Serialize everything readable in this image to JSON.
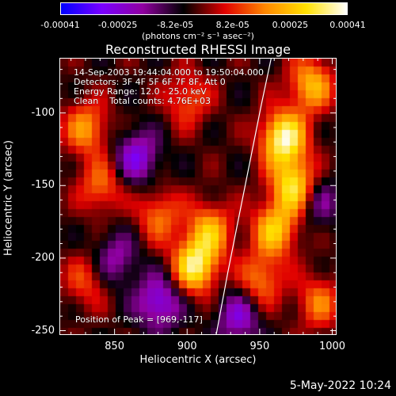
{
  "colorbar": {
    "ticks": [
      "-0.00041",
      "-0.00025",
      "-8.2e-05",
      "8.2e-05",
      "0.00025",
      "0.00041"
    ],
    "unit": "(photons cm⁻² s⁻¹ asec⁻²)",
    "colors": [
      "#0000ff",
      "#7a00ff",
      "#9000a0",
      "#000000",
      "#e00000",
      "#ff8800",
      "#ffe000",
      "#ffffff"
    ]
  },
  "chart_data": {
    "type": "heatmap",
    "title": "Reconstructed RHESSI Image",
    "xlabel": "Heliocentric X (arcsec)",
    "ylabel": "Heliocentric Y (arcsec)",
    "xlim": [
      812,
      1003
    ],
    "ylim": [
      -253,
      -62
    ],
    "x_ticks": [
      "850",
      "900",
      "950",
      "1000"
    ],
    "y_ticks": [
      "-100",
      "-150",
      "-200",
      "-250"
    ],
    "x_tick_values": [
      850,
      900,
      950,
      1000
    ],
    "y_tick_values": [
      -100,
      -150,
      -200,
      -250
    ],
    "limb": [
      [
        920,
        -253
      ],
      [
        928,
        -210
      ],
      [
        936,
        -170
      ],
      [
        944,
        -130
      ],
      [
        951,
        -95
      ],
      [
        958,
        -62
      ]
    ],
    "blobs": [
      {
        "x": 966,
        "y": -117,
        "value": 1.0
      },
      {
        "x": 973,
        "y": -150,
        "value": 0.85
      },
      {
        "x": 960,
        "y": -180,
        "value": 0.7
      },
      {
        "x": 985,
        "y": -80,
        "value": 0.65
      },
      {
        "x": 905,
        "y": -205,
        "value": 0.9
      },
      {
        "x": 915,
        "y": -180,
        "value": 0.6
      },
      {
        "x": 880,
        "y": -170,
        "value": 0.45
      },
      {
        "x": 830,
        "y": -110,
        "value": 0.55
      },
      {
        "x": 840,
        "y": -150,
        "value": 0.45
      },
      {
        "x": 900,
        "y": -90,
        "value": 0.4
      },
      {
        "x": 990,
        "y": -230,
        "value": 0.45
      },
      {
        "x": 950,
        "y": -215,
        "value": 0.5
      },
      {
        "x": 830,
        "y": -215,
        "value": 0.35
      },
      {
        "x": 865,
        "y": -130,
        "value": -0.55
      },
      {
        "x": 880,
        "y": -230,
        "value": -0.6
      },
      {
        "x": 935,
        "y": -240,
        "value": -0.5
      },
      {
        "x": 850,
        "y": -200,
        "value": -0.4
      },
      {
        "x": 990,
        "y": -160,
        "value": -0.35
      }
    ]
  },
  "annotations": {
    "time_range": "14-Sep-2003 19:44:04.000 to 19:50:04.000",
    "detectors": "Detectors: 3F 4F 5F 6F 7F 8F, Att 0",
    "energy": "Energy Range: 12.0 - 25.0 keV",
    "method": "Clean    Total counts: 4.76E+03",
    "peak": "Position of Peak = [969,-117]"
  },
  "timestamp": "5-May-2022 10:24"
}
